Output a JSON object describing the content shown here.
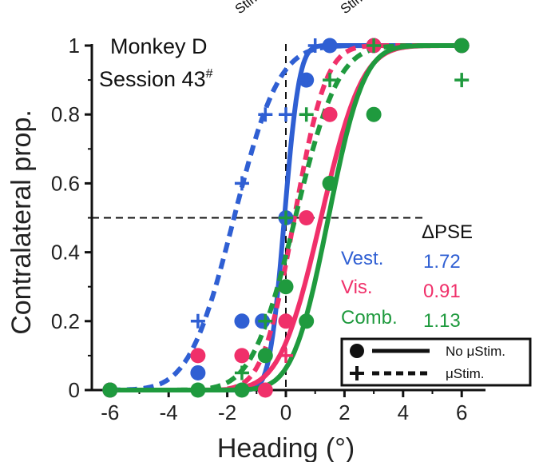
{
  "chart_data": {
    "type": "line",
    "ylabel": "Contralateral prop.",
    "xlabel": "Heading (°)",
    "annotation": {
      "line1": "Monkey D",
      "line2": "Session 43",
      "line2_mark": "#"
    },
    "clipped_top_texts": [
      "Stim",
      "Stim"
    ],
    "xlim": [
      -6.6,
      6.6
    ],
    "ylim": [
      0,
      1.0
    ],
    "xticks": [
      -6,
      -4,
      -2,
      0,
      2,
      4,
      6
    ],
    "yticks": [
      0,
      0.2,
      0.4,
      0.6,
      0.8,
      1
    ],
    "ytick_labels": [
      "0",
      "0.2",
      "0.4",
      "0.6",
      "0.8",
      "1"
    ],
    "reference_lines": {
      "x": 0,
      "y": 0.5
    },
    "colors": {
      "vest": "#2f5fd3",
      "vis": "#f0306a",
      "comb": "#1f9a3e"
    },
    "series": [
      {
        "name": "Vest.",
        "condition": "No μStim.",
        "style": "solid",
        "marker": "circle",
        "color": "#2f5fd3",
        "pse": -0.05,
        "sigma": 0.4,
        "x": [
          -6,
          -3,
          -1.5,
          -0.8,
          0,
          0.7,
          1.5,
          3,
          6
        ],
        "y": [
          0,
          0.05,
          0.2,
          0.2,
          0.5,
          0.9,
          1.0,
          1.0,
          1.0
        ]
      },
      {
        "name": "Vest.",
        "condition": "μStim.",
        "style": "dashed",
        "marker": "plus",
        "color": "#2f5fd3",
        "pse": -1.77,
        "sigma": 1.2,
        "x": [
          -6,
          -3,
          -1.5,
          -0.7,
          0,
          0.7,
          1,
          3,
          6
        ],
        "y": [
          0,
          0.2,
          0.6,
          0.8,
          0.8,
          0.9,
          1.0,
          1.0,
          1.0
        ]
      },
      {
        "name": "Vis.",
        "condition": "No μStim.",
        "style": "solid",
        "marker": "circle",
        "color": "#f0306a",
        "pse": 1.2,
        "sigma": 1.1,
        "x": [
          -6,
          -3,
          -1.5,
          -0.7,
          0,
          0.7,
          1.5,
          3,
          6
        ],
        "y": [
          0,
          0.1,
          0.1,
          0.0,
          0.2,
          0.5,
          0.8,
          1.0,
          1.0
        ]
      },
      {
        "name": "Vis.",
        "condition": "μStim.",
        "style": "dashed",
        "marker": "plus",
        "color": "#f0306a",
        "pse": 0.29,
        "sigma": 0.85,
        "x": [
          -6,
          -3,
          -1.5,
          -0.7,
          0,
          0.7,
          1.5,
          3,
          6
        ],
        "y": [
          0,
          0.0,
          0.1,
          0.1,
          0.1,
          0.5,
          0.8,
          1.0,
          1.0
        ]
      },
      {
        "name": "Comb.",
        "condition": "No μStim.",
        "style": "solid",
        "marker": "circle",
        "color": "#1f9a3e",
        "pse": 1.45,
        "sigma": 0.95,
        "x": [
          -6,
          -3,
          -1.5,
          -0.7,
          0,
          0.7,
          1.5,
          3,
          6
        ],
        "y": [
          0,
          0.0,
          0.0,
          0.1,
          0.3,
          0.2,
          0.6,
          0.8,
          1.0
        ]
      },
      {
        "name": "Comb.",
        "condition": "μStim.",
        "style": "dashed",
        "marker": "plus",
        "color": "#1f9a3e",
        "pse": 0.32,
        "sigma": 1.15,
        "x": [
          -6,
          -3,
          -1.5,
          -0.7,
          0,
          0.7,
          1.5,
          3,
          6
        ],
        "y": [
          0,
          0.0,
          0.05,
          0.2,
          0.5,
          0.8,
          0.9,
          1.0,
          0.9
        ]
      }
    ],
    "delta_pse": {
      "header": "ΔPSE",
      "rows": [
        {
          "label": "Vest.",
          "value": "1.72",
          "color": "#2f5fd3"
        },
        {
          "label": "Vis.",
          "value": "0.91",
          "color": "#f0306a"
        },
        {
          "label": "Comb.",
          "value": "1.13",
          "color": "#1f9a3e"
        }
      ]
    },
    "legend": {
      "placement": "bottom-right",
      "entries": [
        {
          "label": "No μStim.",
          "style": "solid",
          "marker": "circle"
        },
        {
          "label": "μStim.",
          "style": "dashed",
          "marker": "plus"
        }
      ]
    }
  }
}
